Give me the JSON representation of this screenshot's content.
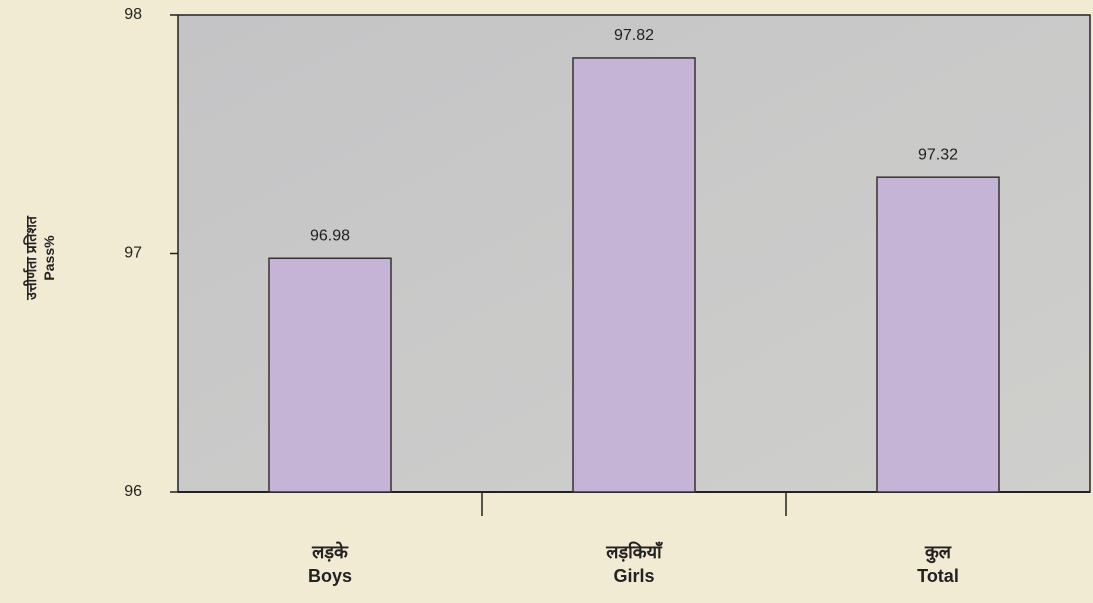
{
  "chart_data": {
    "type": "bar",
    "y_label": "उत्तीर्णता प्रतिशत\nPass%",
    "categories": [
      "लड़के\nBoys",
      "लड़कियाँ\nGirls",
      "कुल\nTotal"
    ],
    "values": [
      96.98,
      97.82,
      97.32
    ],
    "color": "#c6b4d6",
    "ylim": [
      96,
      98
    ],
    "yticks": [
      96,
      97,
      98
    ],
    "grid": false
  }
}
